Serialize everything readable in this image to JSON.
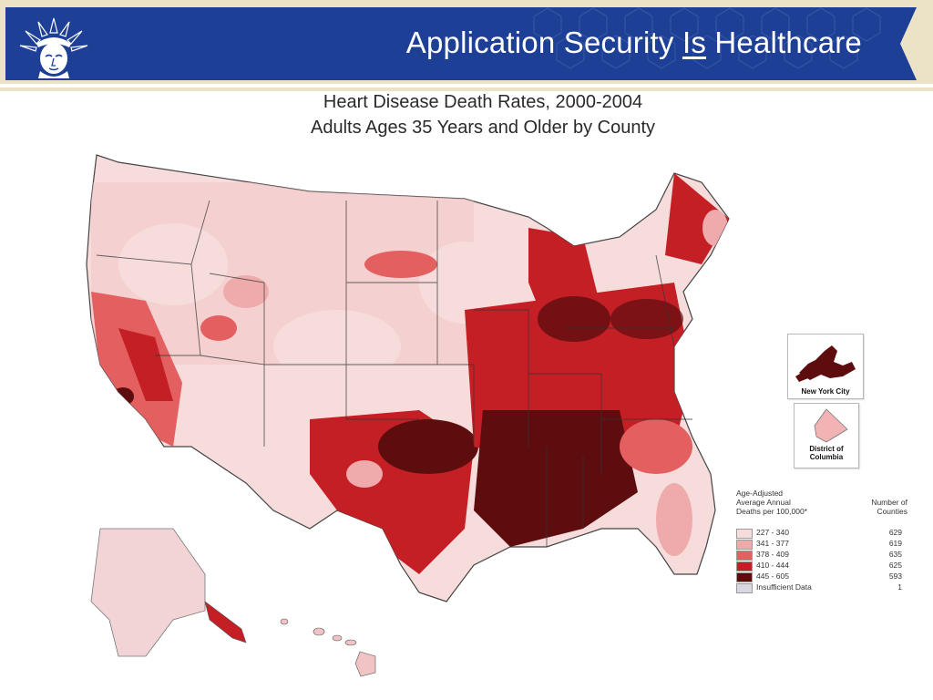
{
  "header": {
    "title_before": "Application Security ",
    "title_emphasis": "Is",
    "title_after": " Healthcare",
    "banner_color": "#1d3f95",
    "frame_color": "#ece3c7",
    "logo_icon": "statue-of-liberty-icon"
  },
  "map": {
    "title_line1": "Heart Disease Death Rates, 2000-2004",
    "title_line2": "Adults Ages 35 Years and Older by County",
    "insets": {
      "nyc_label": "New York City",
      "dc_label_line1": "District of",
      "dc_label_line2": "Columbia"
    },
    "legend": {
      "heading_line1": "Age-Adjusted",
      "heading_line2": "Average Annual",
      "heading_line3": "Deaths per 100,000*",
      "count_heading_line1": "Number of",
      "count_heading_line2": "Counties",
      "classes": [
        {
          "range": "227 - 340",
          "count": "629",
          "color": "#f7dcdc"
        },
        {
          "range": "341 - 377",
          "count": "619",
          "color": "#efabab"
        },
        {
          "range": "378 - 409",
          "count": "635",
          "color": "#e45f5f"
        },
        {
          "range": "410 - 444",
          "count": "625",
          "color": "#c41f24"
        },
        {
          "range": "445 - 605",
          "count": "593",
          "color": "#5e0d0f"
        },
        {
          "range": "Insufficient Data",
          "count": "1",
          "color": "#d8d8e2"
        }
      ]
    }
  }
}
